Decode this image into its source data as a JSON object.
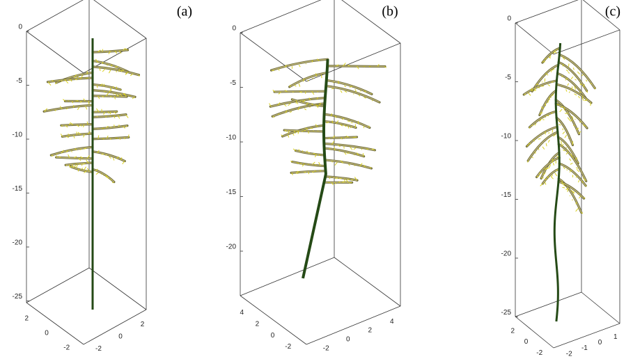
{
  "panels": [
    {
      "label": "(a)",
      "zticks": [
        0,
        -5,
        -10,
        -15,
        -20,
        -25
      ],
      "xticks": [
        2,
        0,
        -2
      ],
      "yticks": [
        -2,
        0,
        2
      ]
    },
    {
      "label": "(b)",
      "zticks": [
        0,
        -5,
        -10,
        -15,
        -20
      ],
      "xticks": [
        4,
        2,
        0,
        -2
      ],
      "yticks": [
        -2,
        0,
        2,
        4
      ]
    },
    {
      "label": "(c)",
      "zticks": [
        0,
        -5,
        -10,
        -15,
        -20,
        -25
      ],
      "xticks": [
        2,
        0,
        -2
      ],
      "yticks": [
        -2,
        -1,
        0,
        1
      ]
    }
  ]
}
